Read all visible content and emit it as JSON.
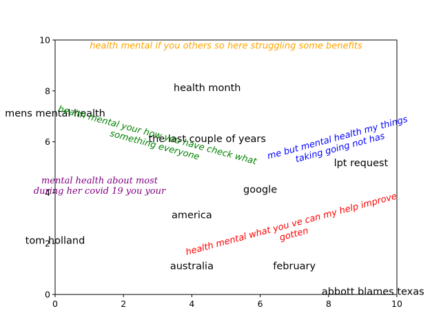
{
  "chart_data": {
    "type": "scatter",
    "title": "",
    "xlabel": "",
    "ylabel": "",
    "xlim": [
      0,
      10
    ],
    "ylim": [
      0,
      10
    ],
    "x_ticks": [
      "0",
      "2",
      "4",
      "6",
      "8",
      "10"
    ],
    "y_ticks": [
      "0",
      "2",
      "4",
      "6",
      "8",
      "10"
    ],
    "grid": false,
    "words": [
      {
        "text": "health month",
        "x": 4.45,
        "y": 8.1
      },
      {
        "text": "mens mental health",
        "x": 0.0,
        "y": 7.1
      },
      {
        "text": "the last couple of years",
        "x": 4.45,
        "y": 6.1
      },
      {
        "text": "lpt request",
        "x": 8.95,
        "y": 5.15
      },
      {
        "text": "google",
        "x": 6.0,
        "y": 4.1
      },
      {
        "text": "america",
        "x": 4.0,
        "y": 3.1
      },
      {
        "text": "tom holland",
        "x": 0.0,
        "y": 2.1
      },
      {
        "text": "australia",
        "x": 4.0,
        "y": 1.1
      },
      {
        "text": "february",
        "x": 7.0,
        "y": 1.1
      },
      {
        "text": "abbott blames texas",
        "x": 9.3,
        "y": 0.1
      }
    ],
    "phrases": [
      {
        "lines": [
          "health mental if you others so here struggling some benefits"
        ],
        "x": 5.0,
        "y": 9.75,
        "angle": 0,
        "color": "#ffa500",
        "style": "sans"
      },
      {
        "lines": [
          "health mental your how you have check what",
          "something everyone"
        ],
        "x": 2.95,
        "y": 6.05,
        "angle": -15,
        "color": "#008000",
        "style": "sans"
      },
      {
        "lines": [
          "me but mental health my things",
          "taking going not has"
        ],
        "x": 8.3,
        "y": 5.95,
        "angle": 15,
        "color": "#0000ff",
        "style": "sans"
      },
      {
        "lines": [
          "mental health about most",
          "during her covid 19 you your"
        ],
        "x": 1.3,
        "y": 4.25,
        "angle": 0,
        "color": "#800080",
        "style": "serif"
      },
      {
        "lines": [
          "health mental what you ve can my help improve",
          "gotten"
        ],
        "x": 6.95,
        "y": 2.55,
        "angle": 15,
        "color": "#ff0000",
        "style": "sans"
      }
    ]
  }
}
